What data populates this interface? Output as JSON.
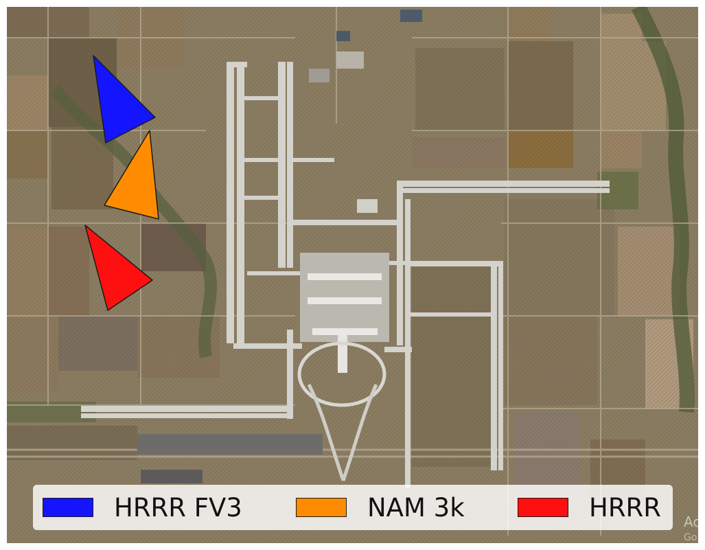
{
  "map": {
    "type": "satellite-image",
    "subject": "airport-runways",
    "base_colors": {
      "ground": "#8d7f63",
      "field_dark": "#6b5d46",
      "field_light": "#a69276",
      "runway": "#d4d2cc",
      "pavement": "#bfbdb7",
      "vegetation": "#5e6a43"
    }
  },
  "markers": [
    {
      "model": "HRRR FV3",
      "color": "#1414ff",
      "shape": "triangle-icon"
    },
    {
      "model": "NAM 3k",
      "color": "#ff8c00",
      "shape": "triangle-icon"
    },
    {
      "model": "HRRR",
      "color": "#ff1010",
      "shape": "triangle-icon"
    }
  ],
  "legend": {
    "items": [
      {
        "label": "HRRR FV3",
        "color": "#1414ff"
      },
      {
        "label": "NAM 3k",
        "color": "#ff8c00"
      },
      {
        "label": "HRRR",
        "color": "#ff1010"
      }
    ]
  },
  "watermark": {
    "line1": "Act",
    "line2": "Go"
  }
}
